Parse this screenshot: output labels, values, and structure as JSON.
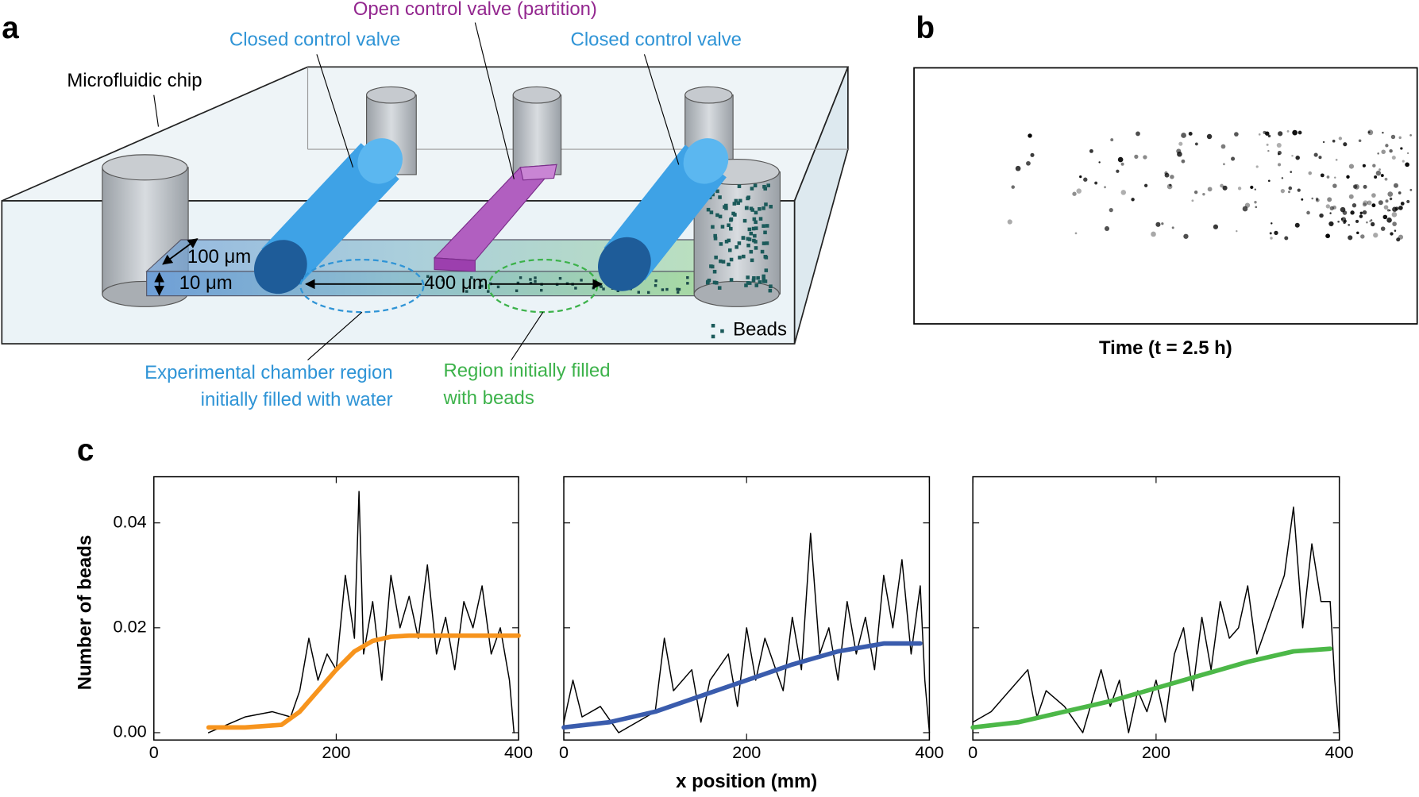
{
  "panel_a": {
    "letter": "a",
    "chip_label": "Microfluidic chip",
    "valve_left": "Closed control valve",
    "valve_right": "Closed control valve",
    "valve_open": "Open control valve (partition)",
    "width_label": "100 μm",
    "height_label": "10 μm",
    "length_label": "400 μm",
    "beads_label": "Beads",
    "water_region": [
      "Experimental chamber region",
      "initially filled with water"
    ],
    "bead_region": [
      "Region initially filled",
      "with beads"
    ]
  },
  "panel_b": {
    "letter": "b",
    "caption": "Time (t = 2.5 h)"
  },
  "panel_c": {
    "letter": "c",
    "xlabel": "x position (mm)",
    "ylabel": "Number of beads"
  },
  "chart_data": [
    {
      "type": "line",
      "xlim": [
        0,
        400
      ],
      "ylim": [
        -0.0014,
        0.0488
      ],
      "xticks": [
        0,
        200,
        400
      ],
      "yticks": [
        {
          "value": 0,
          "label": "0.00"
        },
        {
          "value": 0.02,
          "label": "0.02"
        },
        {
          "value": 0.04,
          "label": "0.04"
        }
      ],
      "show_ytick_labels": true,
      "series": [
        {
          "color": "#000000",
          "x": [
            60,
            100,
            130,
            150,
            160,
            170,
            180,
            190,
            200,
            210,
            220,
            225,
            230,
            240,
            250,
            260,
            270,
            280,
            290,
            300,
            310,
            320,
            330,
            340,
            350,
            360,
            370,
            380,
            390,
            395
          ],
          "values": [
            0,
            0.003,
            0.004,
            0.003,
            0.008,
            0.018,
            0.01,
            0.015,
            0.012,
            0.03,
            0.018,
            0.046,
            0.015,
            0.025,
            0.01,
            0.03,
            0.02,
            0.026,
            0.018,
            0.032,
            0.015,
            0.022,
            0.012,
            0.025,
            0.02,
            0.028,
            0.015,
            0.02,
            0.01,
            0
          ]
        },
        {
          "color": "#f7941d",
          "x": [
            60,
            100,
            140,
            160,
            180,
            200,
            220,
            240,
            260,
            280,
            300,
            340,
            400
          ],
          "values": [
            0.001,
            0.001,
            0.0015,
            0.004,
            0.008,
            0.012,
            0.0155,
            0.0175,
            0.0183,
            0.0185,
            0.0185,
            0.0185,
            0.0185
          ]
        }
      ]
    },
    {
      "type": "line",
      "xlim": [
        0,
        400
      ],
      "ylim": [
        -0.0014,
        0.0488
      ],
      "xticks": [
        0,
        200,
        400
      ],
      "yticks": [
        0,
        0.02,
        0.04
      ],
      "show_ytick_labels": false,
      "series": [
        {
          "color": "#000000",
          "x": [
            0,
            10,
            20,
            40,
            60,
            80,
            100,
            110,
            120,
            140,
            150,
            160,
            180,
            190,
            200,
            210,
            220,
            240,
            250,
            260,
            270,
            280,
            290,
            300,
            310,
            320,
            330,
            340,
            350,
            360,
            370,
            380,
            390,
            395,
            400
          ],
          "values": [
            0.002,
            0.01,
            0.003,
            0.005,
            0,
            0.002,
            0.004,
            0.018,
            0.008,
            0.012,
            0.002,
            0.01,
            0.015,
            0.005,
            0.02,
            0.01,
            0.018,
            0.008,
            0.022,
            0.012,
            0.038,
            0.015,
            0.02,
            0.01,
            0.025,
            0.015,
            0.022,
            0.012,
            0.03,
            0.02,
            0.033,
            0.015,
            0.028,
            0.01,
            0
          ]
        },
        {
          "color": "#3a5cad",
          "x": [
            0,
            50,
            100,
            150,
            200,
            250,
            300,
            350,
            390
          ],
          "values": [
            0.001,
            0.002,
            0.004,
            0.007,
            0.01,
            0.013,
            0.0155,
            0.017,
            0.017
          ]
        }
      ]
    },
    {
      "type": "line",
      "xlim": [
        0,
        400
      ],
      "ylim": [
        -0.0014,
        0.0488
      ],
      "xticks": [
        0,
        200,
        400
      ],
      "yticks": [
        0,
        0.02,
        0.04
      ],
      "show_ytick_labels": false,
      "series": [
        {
          "color": "#000000",
          "x": [
            0,
            20,
            40,
            60,
            70,
            80,
            100,
            120,
            130,
            140,
            150,
            160,
            170,
            180,
            190,
            200,
            210,
            220,
            230,
            240,
            250,
            260,
            270,
            280,
            290,
            300,
            310,
            320,
            340,
            350,
            360,
            370,
            380,
            390,
            395,
            400
          ],
          "values": [
            0.002,
            0.004,
            0.008,
            0.012,
            0.003,
            0.008,
            0.005,
            0,
            0.006,
            0.012,
            0.005,
            0.01,
            0,
            0.008,
            0.004,
            0.01,
            0.002,
            0.015,
            0.02,
            0.008,
            0.022,
            0.012,
            0.025,
            0.018,
            0.02,
            0.028,
            0.015,
            0.02,
            0.03,
            0.043,
            0.02,
            0.036,
            0.025,
            0.025,
            0.01,
            0
          ]
        },
        {
          "color": "#4cb848",
          "x": [
            0,
            50,
            100,
            150,
            200,
            250,
            300,
            350,
            390
          ],
          "values": [
            0.001,
            0.002,
            0.004,
            0.006,
            0.0085,
            0.011,
            0.0135,
            0.0155,
            0.016
          ]
        }
      ]
    }
  ]
}
